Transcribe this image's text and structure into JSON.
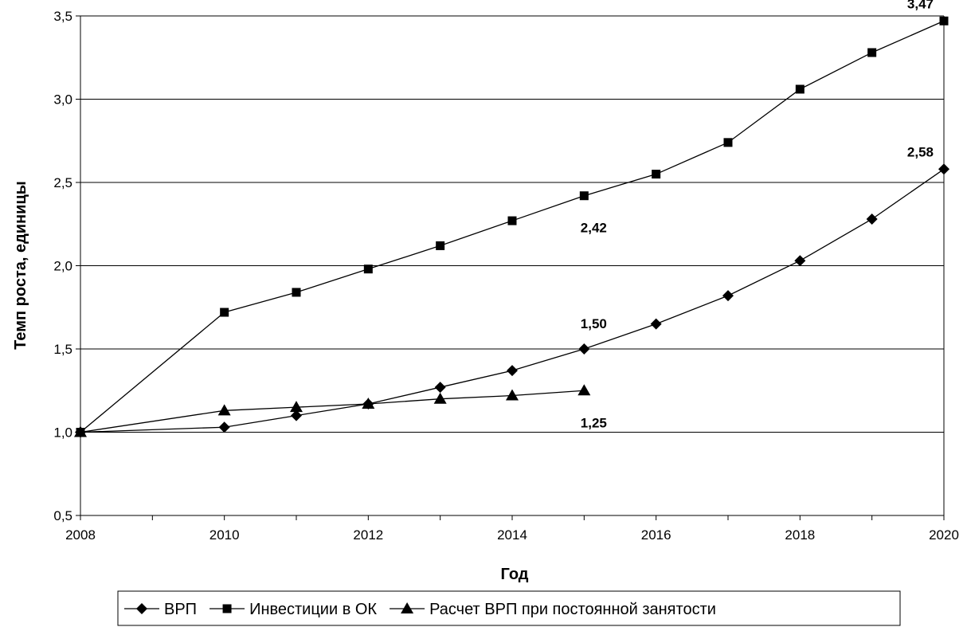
{
  "chart_data": {
    "type": "line",
    "xlabel": "Год",
    "ylabel": "Темп роста, единицы",
    "xlim": [
      2008,
      2020
    ],
    "ylim": [
      0.5,
      3.5
    ],
    "x_ticks": [
      "2008",
      "2010",
      "2012",
      "2014",
      "2016",
      "2018",
      "2020"
    ],
    "x_tick_values": [
      2008,
      2010,
      2012,
      2014,
      2016,
      2018,
      2020
    ],
    "y_ticks": [
      "0,5",
      "1,0",
      "1,5",
      "2,0",
      "2,5",
      "3,0",
      "3,5"
    ],
    "y_tick_values": [
      0.5,
      1.0,
      1.5,
      2.0,
      2.5,
      3.0,
      3.5
    ],
    "grid": "horizontal",
    "legend_position": "bottom",
    "series": [
      {
        "name": "ВРП",
        "marker": "diamond",
        "points": [
          [
            2008,
            1.0
          ],
          [
            2010,
            1.03
          ],
          [
            2011,
            1.1
          ],
          [
            2012,
            1.17
          ],
          [
            2013,
            1.27
          ],
          [
            2014,
            1.37
          ],
          [
            2015,
            1.5
          ],
          [
            2016,
            1.65
          ],
          [
            2017,
            1.82
          ],
          [
            2018,
            2.03
          ],
          [
            2019,
            2.28
          ],
          [
            2020,
            2.58
          ]
        ]
      },
      {
        "name": "Инвестиции в ОК",
        "marker": "square",
        "points": [
          [
            2008,
            1.0
          ],
          [
            2010,
            1.72
          ],
          [
            2011,
            1.84
          ],
          [
            2012,
            1.98
          ],
          [
            2013,
            2.12
          ],
          [
            2014,
            2.27
          ],
          [
            2015,
            2.42
          ],
          [
            2016,
            2.55
          ],
          [
            2017,
            2.74
          ],
          [
            2018,
            3.06
          ],
          [
            2019,
            3.28
          ],
          [
            2020,
            3.47
          ]
        ]
      },
      {
        "name": "Расчет ВРП при постоянной занятости",
        "marker": "triangle",
        "points": [
          [
            2008,
            1.0
          ],
          [
            2010,
            1.13
          ],
          [
            2011,
            1.15
          ],
          [
            2012,
            1.17
          ],
          [
            2013,
            1.2
          ],
          [
            2014,
            1.22
          ],
          [
            2015,
            1.25
          ]
        ]
      }
    ],
    "annotations": [
      {
        "text": "3,47",
        "x": 2020,
        "y": 3.47,
        "anchor": "end"
      },
      {
        "text": "2,58",
        "x": 2020,
        "y": 2.58,
        "anchor": "end"
      },
      {
        "text": "2,42",
        "x": 2015,
        "y": 2.42,
        "anchor": "below"
      },
      {
        "text": "1,50",
        "x": 2015,
        "y": 1.5,
        "anchor": "above"
      },
      {
        "text": "1,25",
        "x": 2015,
        "y": 1.25,
        "anchor": "below"
      }
    ]
  }
}
